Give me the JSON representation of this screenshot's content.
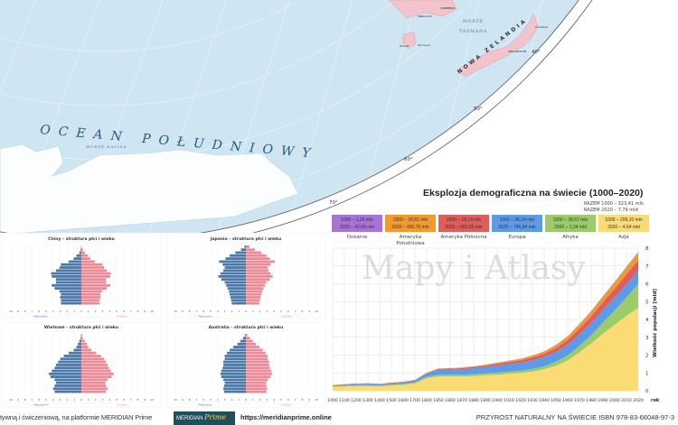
{
  "map": {
    "ocean_label": "OCEAN POŁUDNIOWY",
    "sea_davis": "MORZE DAVISA",
    "sea_tasman": [
      "MORZE",
      "TASMANA"
    ],
    "nz_label": "NOWA ZELANDIA",
    "cities": [
      "CANBERRA",
      "Melbourne",
      "Hobart",
      "WELLINGTON",
      "Auckland"
    ],
    "tasmania": "Tasmania",
    "latitudes": [
      "40°",
      "50°",
      "60°",
      "70°"
    ],
    "colors": {
      "ocean": "#cfe5f2",
      "land": "#f2c3ca",
      "ice": "#ffffff"
    }
  },
  "watermark": "Mapy i Atlasy",
  "pyramids": {
    "male_label": "Mężczyźni",
    "female_label": "Kobiety",
    "axis_ticks": [
      "10",
      "9",
      "8",
      "7",
      "6",
      "5",
      "4",
      "3",
      "2",
      "1",
      "0",
      "1",
      "2",
      "3",
      "4",
      "5",
      "6",
      "7",
      "8",
      "9",
      "10"
    ],
    "colors": {
      "male": "#4a78a8",
      "female": "#ee8a97"
    },
    "charts": [
      {
        "title": "Chiny – struktura płci i wieku",
        "male": [
          2.9,
          2.9,
          3.0,
          2.9,
          3.1,
          3.8,
          4.2,
          3.6,
          3.6,
          4.2,
          4.3,
          3.6,
          3.1,
          2.9,
          1.8,
          1.1,
          0.7,
          0.3,
          0.1,
          0.02
        ],
        "female": [
          2.6,
          2.6,
          2.7,
          2.7,
          2.9,
          3.6,
          4.1,
          3.5,
          3.5,
          4.1,
          4.2,
          3.6,
          3.2,
          3.0,
          1.9,
          1.3,
          0.9,
          0.5,
          0.2,
          0.05
        ]
      },
      {
        "title": "Japonia – struktura płci i wieku",
        "male": [
          2.0,
          2.1,
          2.2,
          2.3,
          2.4,
          2.6,
          2.8,
          3.0,
          3.5,
          3.9,
          3.6,
          3.2,
          3.0,
          3.3,
          3.8,
          2.9,
          2.3,
          1.5,
          0.7,
          0.2
        ],
        "female": [
          1.9,
          2.0,
          2.1,
          2.2,
          2.3,
          2.5,
          2.7,
          2.9,
          3.4,
          3.8,
          3.5,
          3.2,
          3.1,
          3.5,
          4.1,
          3.4,
          2.9,
          2.2,
          1.3,
          0.5
        ]
      },
      {
        "title": "Wietnam – struktura płci i wieku",
        "male": [
          3.8,
          4.0,
          3.8,
          3.6,
          3.8,
          4.4,
          4.6,
          4.2,
          3.8,
          3.6,
          3.3,
          3.0,
          2.5,
          1.8,
          1.1,
          0.7,
          0.5,
          0.3,
          0.1,
          0.05
        ],
        "female": [
          3.5,
          3.7,
          3.5,
          3.4,
          3.7,
          4.3,
          4.6,
          4.2,
          3.9,
          3.7,
          3.5,
          3.2,
          2.8,
          2.1,
          1.4,
          1.0,
          0.8,
          0.5,
          0.2,
          0.1
        ]
      },
      {
        "title": "Australia – struktura płci i wieku",
        "male": [
          3.1,
          3.2,
          3.1,
          3.0,
          3.2,
          3.5,
          3.6,
          3.5,
          3.3,
          3.2,
          3.2,
          3.0,
          3.0,
          2.7,
          2.3,
          1.8,
          1.2,
          0.8,
          0.4,
          0.1
        ],
        "female": [
          2.9,
          3.0,
          2.9,
          2.9,
          3.1,
          3.5,
          3.7,
          3.6,
          3.4,
          3.3,
          3.3,
          3.1,
          3.1,
          2.8,
          2.4,
          1.9,
          1.4,
          1.0,
          0.6,
          0.2
        ]
      }
    ]
  },
  "chart_data": {
    "type": "area",
    "title": "Eksplozja demograficzna na świecie (1000–2020)",
    "totals": [
      "RAZEM 1000 – 323,41 mln",
      "RAZEM 2020 – 7,79 mld"
    ],
    "xlabel": "rok",
    "ylabel": "Wielkość populacji [mld]",
    "ylim": [
      0,
      8
    ],
    "yticks": [
      "0",
      "1",
      "2",
      "3",
      "4",
      "5",
      "6",
      "7",
      "8"
    ],
    "grid": true,
    "stacked": true,
    "categories": [
      "1000",
      "1100",
      "1200",
      "1300",
      "1400",
      "1500",
      "1600",
      "1700",
      "1800",
      "1850",
      "1860",
      "1870",
      "1880",
      "1890",
      "1900",
      "1910",
      "1920",
      "1930",
      "1940",
      "1950",
      "1960",
      "1970",
      "1980",
      "1990",
      "2000",
      "2010",
      "2020"
    ],
    "series": [
      {
        "name": "Azja",
        "label": [
          "1000 – 209,20 mln",
          "2020 – 4,64 mld"
        ],
        "color": "#fbdc74",
        "values": [
          0.21,
          0.24,
          0.26,
          0.26,
          0.25,
          0.29,
          0.32,
          0.41,
          0.7,
          0.8,
          0.8,
          0.8,
          0.82,
          0.86,
          0.9,
          0.95,
          1.0,
          1.07,
          1.2,
          1.4,
          1.7,
          2.15,
          2.65,
          3.2,
          3.7,
          4.2,
          4.64
        ]
      },
      {
        "name": "Afryka",
        "label": [
          "1000 – 39,67 mln",
          "2020 – 1,34 mld"
        ],
        "color": "#9ccc6a",
        "values": [
          0.04,
          0.04,
          0.05,
          0.05,
          0.05,
          0.05,
          0.06,
          0.06,
          0.08,
          0.1,
          0.1,
          0.1,
          0.11,
          0.11,
          0.12,
          0.12,
          0.13,
          0.15,
          0.17,
          0.23,
          0.28,
          0.36,
          0.47,
          0.63,
          0.81,
          1.04,
          1.34
        ]
      },
      {
        "name": "Europa",
        "label": [
          "1000 – 36,34 mln",
          "2020 – 746,84 mln"
        ],
        "color": "#5b9bea",
        "values": [
          0.036,
          0.05,
          0.06,
          0.07,
          0.05,
          0.08,
          0.09,
          0.1,
          0.18,
          0.28,
          0.29,
          0.31,
          0.33,
          0.36,
          0.39,
          0.42,
          0.44,
          0.49,
          0.53,
          0.55,
          0.6,
          0.66,
          0.69,
          0.72,
          0.73,
          0.74,
          0.75
        ]
      },
      {
        "name": "Ameryka Północna",
        "label": [
          "1000 – 18,14 mln",
          "2020 – 592,06 mln"
        ],
        "color": "#df5d5d",
        "values": [
          0.018,
          0.02,
          0.02,
          0.02,
          0.02,
          0.02,
          0.02,
          0.02,
          0.03,
          0.04,
          0.05,
          0.06,
          0.07,
          0.08,
          0.1,
          0.12,
          0.14,
          0.16,
          0.18,
          0.22,
          0.27,
          0.32,
          0.37,
          0.43,
          0.49,
          0.55,
          0.59
        ]
      },
      {
        "name": "Ameryka Południowa",
        "label": [
          "1000 – 18,81 mln",
          "2020 – 430,76 mln"
        ],
        "color": "#f39a2e",
        "values": [
          0.019,
          0.02,
          0.02,
          0.02,
          0.02,
          0.02,
          0.02,
          0.02,
          0.02,
          0.03,
          0.03,
          0.03,
          0.04,
          0.05,
          0.06,
          0.07,
          0.08,
          0.1,
          0.12,
          0.16,
          0.2,
          0.24,
          0.27,
          0.3,
          0.35,
          0.39,
          0.43
        ]
      },
      {
        "name": "Oceania",
        "label": [
          "1000 – 1,25 mln",
          "2020 – 42,68 mln"
        ],
        "color": "#a872d8",
        "values": [
          0.001,
          0.001,
          0.001,
          0.001,
          0.001,
          0.001,
          0.001,
          0.002,
          0.002,
          0.002,
          0.003,
          0.004,
          0.004,
          0.005,
          0.006,
          0.007,
          0.008,
          0.01,
          0.011,
          0.013,
          0.016,
          0.019,
          0.023,
          0.027,
          0.031,
          0.037,
          0.043
        ]
      }
    ]
  },
  "footer": {
    "left": "tywną i ćwiczeniową, na platformie MERIDIAN Prime",
    "logo": "MERIDIAN",
    "logo_accent": "Prime",
    "url": "https://meridianprime.online",
    "right": "PRZYROST NATURALNY NA ŚWIECIE ISBN 978-83-66048-97-3"
  }
}
